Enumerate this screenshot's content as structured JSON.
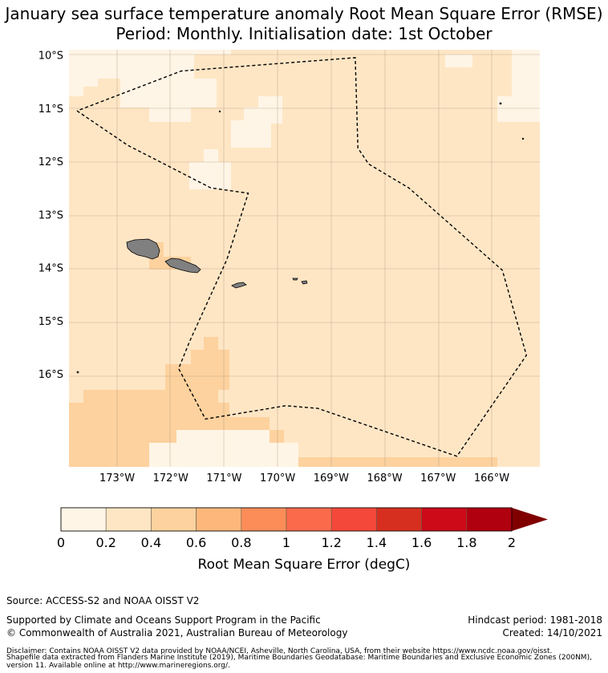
{
  "title_line1": "January sea surface temperature anomaly Root Mean Square Error (RMSE)",
  "title_line2": "Period: Monthly. Initialisation date: 1st October",
  "map": {
    "lat_ticks": [
      "10°S",
      "11°S",
      "12°S",
      "13°S",
      "14°S",
      "15°S",
      "16°S"
    ],
    "lon_ticks": [
      "173°W",
      "172°W",
      "171°W",
      "170°W",
      "169°W",
      "168°W",
      "167°W",
      "166°W"
    ],
    "lat_range": [
      -17.75,
      -9.9
    ],
    "lon_range": [
      -173.9,
      -165.1
    ],
    "eez_boundary": [
      [
        -173.75,
        -11.05
      ],
      [
        -172.8,
        -11.7
      ],
      [
        -171.25,
        -12.5
      ],
      [
        -170.55,
        -12.6
      ],
      [
        -170.95,
        -13.85
      ],
      [
        -171.65,
        -15.4
      ],
      [
        -171.85,
        -15.9
      ],
      [
        -171.35,
        -16.85
      ],
      [
        -169.85,
        -16.6
      ],
      [
        -169.25,
        -16.65
      ],
      [
        -166.65,
        -17.55
      ],
      [
        -165.35,
        -15.65
      ],
      [
        -165.8,
        -14.05
      ],
      [
        -167.55,
        -12.5
      ],
      [
        -168.3,
        -12.05
      ],
      [
        -168.5,
        -11.75
      ],
      [
        -168.55,
        -10.05
      ],
      [
        -171.8,
        -10.3
      ],
      [
        -173.75,
        -11.05
      ]
    ],
    "land_color": "#808080",
    "islands": [
      "Savai'i",
      "Upolu",
      "Tutuila",
      "Manu'a"
    ]
  },
  "colorbar": {
    "ticks": [
      "0",
      "0.2",
      "0.4",
      "0.6",
      "0.8",
      "1",
      "1.2",
      "1.4",
      "1.6",
      "1.8",
      "2"
    ],
    "colors": [
      "#fff5e6",
      "#fee6c5",
      "#fdd29e",
      "#fdb77a",
      "#fc8d59",
      "#fb6b4b",
      "#f3483a",
      "#d62f1f",
      "#cc0a18",
      "#b00010"
    ],
    "extend_color": "#800000",
    "label": "Root Mean Square Error (degC)"
  },
  "footer": {
    "source": "Source: ACCESS-S2 and NOAA OISST V2",
    "supported": "Supported by Climate and Oceans Support Program in the Pacific",
    "copyright": "© Commonwealth of Australia 2021, Australian Bureau of Meteorology",
    "hindcast": "Hindcast period: 1981-2018",
    "created": "Created: 14/10/2021",
    "disclaimer1": "Disclaimer: Contains NOAA OISST V2 data provided by NOAA/NCEI, Asheville, North Carolina, USA, from their website https://www.ncdc.noaa.gov/oisst.",
    "disclaimer2": "Shapefile data extracted from Flanders Marine Institute (2019), Maritime Boundaries Geodatabase: Maritime Boundaries and Exclusive Economic Zones (200NM), version 11. Available online at http://www.marineregions.org/."
  }
}
